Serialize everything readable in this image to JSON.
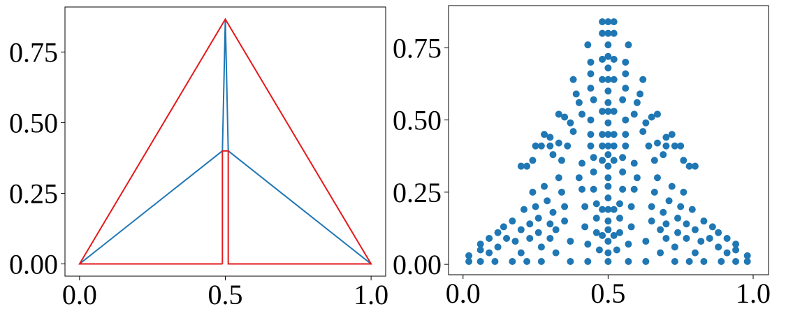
{
  "chart_data": [
    {
      "type": "line",
      "xlim": [
        -0.05,
        1.05
      ],
      "ylim": [
        -0.0433,
        0.9093
      ],
      "xticks": [
        {
          "value": 0,
          "label": "0.0"
        },
        {
          "value": 0.5,
          "label": "0.5"
        },
        {
          "value": 1,
          "label": "1.0"
        }
      ],
      "yticks": [
        {
          "value": 0,
          "label": "0.00"
        },
        {
          "value": 0.25,
          "label": "0.25"
        },
        {
          "value": 0.5,
          "label": "0.50"
        },
        {
          "value": 0.75,
          "label": "0.75"
        }
      ],
      "series": [
        {
          "color": "#1f77b4",
          "x": [
            0,
            0.49,
            0.5,
            0.51,
            1
          ],
          "values": [
            0,
            0.4,
            0.866,
            0.4,
            0
          ]
        },
        {
          "color": "#e41a1c",
          "x": [
            0.49,
            0,
            0.5,
            1,
            0.51,
            0.51,
            0.49,
            0.49
          ],
          "values": [
            0,
            0,
            0.866,
            0,
            0,
            0.4,
            0.4,
            0
          ]
        }
      ]
    },
    {
      "type": "scatter",
      "xlim": [
        -0.05,
        1.053
      ],
      "ylim": [
        -0.036,
        0.896
      ],
      "color": "#1f77b4",
      "xticks": [
        {
          "value": 0,
          "label": "0.0"
        },
        {
          "value": 0.5,
          "label": "0.5"
        },
        {
          "value": 1,
          "label": "1.0"
        }
      ],
      "yticks": [
        {
          "value": 0,
          "label": "0.00"
        },
        {
          "value": 0.25,
          "label": "0.25"
        },
        {
          "value": 0.5,
          "label": "0.50"
        },
        {
          "value": 0.75,
          "label": "0.75"
        }
      ],
      "x": [
        0.02,
        0.02,
        0.06,
        0.06,
        0.06,
        0.09,
        0.09,
        0.11,
        0.12,
        0.12,
        0.14,
        0.15,
        0.17,
        0.17,
        0.18,
        0.2,
        0.2,
        0.21,
        0.22,
        0.23,
        0.23,
        0.24,
        0.25,
        0.26,
        0.26,
        0.27,
        0.27,
        0.28,
        0.29,
        0.3,
        0.3,
        0.31,
        0.32,
        0.32,
        0.33,
        0.34,
        0.35,
        0.35,
        0.37,
        0.37,
        0.2,
        0.22,
        0.24,
        0.25,
        0.27,
        0.28,
        0.3,
        0.3,
        0.31,
        0.33,
        0.34,
        0.36,
        0.35,
        0.33,
        0.37,
        0.38,
        0.38,
        0.39,
        0.4,
        0.41,
        0.41,
        0.4,
        0.41,
        0.42,
        0.42,
        0.43,
        0.43,
        0.43,
        0.44,
        0.44,
        0.44,
        0.45,
        0.44,
        0.44,
        0.44,
        0.45,
        0.45,
        0.45,
        0.46,
        0.46,
        0.46,
        0.47,
        0.48,
        0.48,
        0.48,
        0.48,
        0.48,
        0.48,
        0.48,
        0.48,
        0.48,
        0.48,
        0.98,
        0.98,
        0.94,
        0.94,
        0.94,
        0.91,
        0.91,
        0.89,
        0.88,
        0.88,
        0.86,
        0.85,
        0.83,
        0.83,
        0.82,
        0.8,
        0.8,
        0.79,
        0.78,
        0.77,
        0.77,
        0.76,
        0.75,
        0.74,
        0.74,
        0.73,
        0.73,
        0.72,
        0.71,
        0.7,
        0.7,
        0.69,
        0.68,
        0.68,
        0.67,
        0.66,
        0.65,
        0.65,
        0.63,
        0.63,
        0.8,
        0.78,
        0.76,
        0.75,
        0.73,
        0.72,
        0.7,
        0.7,
        0.69,
        0.67,
        0.66,
        0.64,
        0.65,
        0.67,
        0.63,
        0.62,
        0.62,
        0.61,
        0.6,
        0.59,
        0.59,
        0.6,
        0.59,
        0.58,
        0.58,
        0.57,
        0.57,
        0.57,
        0.56,
        0.56,
        0.56,
        0.55,
        0.56,
        0.56,
        0.56,
        0.55,
        0.55,
        0.55,
        0.54,
        0.54,
        0.54,
        0.53,
        0.52,
        0.52,
        0.52,
        0.52,
        0.52,
        0.52,
        0.52,
        0.52,
        0.52,
        0.52,
        0.5,
        0.5,
        0.5,
        0.5,
        0.5,
        0.5,
        0.5,
        0.5,
        0.5,
        0.5,
        0.5,
        0.5,
        0.5,
        0.5,
        0.5,
        0.5,
        0.5,
        0.5,
        0.5,
        0.5,
        0.5,
        0.5,
        0.5
      ],
      "values": [
        0.01,
        0.03,
        0.01,
        0.05,
        0.07,
        0.04,
        0.09,
        0.01,
        0.06,
        0.11,
        0.13,
        0.09,
        0.01,
        0.15,
        0.08,
        0.04,
        0.12,
        0.19,
        0.01,
        0.14,
        0.09,
        0.25,
        0.2,
        0.16,
        0.11,
        0.06,
        0.01,
        0.27,
        0.22,
        0.14,
        0.09,
        0.18,
        0.04,
        0.12,
        0.3,
        0.25,
        0.2,
        0.15,
        0.08,
        0.01,
        0.34,
        0.34,
        0.36,
        0.41,
        0.41,
        0.45,
        0.41,
        0.44,
        0.38,
        0.42,
        0.36,
        0.41,
        0.51,
        0.52,
        0.49,
        0.46,
        0.64,
        0.59,
        0.56,
        0.52,
        0.35,
        0.3,
        0.26,
        0.2,
        0.13,
        0.07,
        0.01,
        0.76,
        0.7,
        0.66,
        0.61,
        0.57,
        0.5,
        0.45,
        0.41,
        0.37,
        0.32,
        0.26,
        0.21,
        0.16,
        0.11,
        0.05,
        0.84,
        0.8,
        0.71,
        0.64,
        0.53,
        0.45,
        0.41,
        0.36,
        0.19,
        0.1,
        0.01,
        0.03,
        0.01,
        0.05,
        0.07,
        0.04,
        0.09,
        0.01,
        0.06,
        0.11,
        0.13,
        0.09,
        0.01,
        0.15,
        0.08,
        0.04,
        0.12,
        0.19,
        0.01,
        0.14,
        0.09,
        0.25,
        0.2,
        0.16,
        0.11,
        0.06,
        0.01,
        0.27,
        0.22,
        0.14,
        0.09,
        0.18,
        0.04,
        0.12,
        0.3,
        0.25,
        0.2,
        0.15,
        0.08,
        0.01,
        0.34,
        0.34,
        0.36,
        0.41,
        0.41,
        0.45,
        0.41,
        0.44,
        0.38,
        0.42,
        0.36,
        0.41,
        0.51,
        0.52,
        0.49,
        0.46,
        0.64,
        0.59,
        0.56,
        0.52,
        0.35,
        0.3,
        0.26,
        0.2,
        0.13,
        0.07,
        0.01,
        0.76,
        0.7,
        0.66,
        0.61,
        0.57,
        0.5,
        0.45,
        0.41,
        0.37,
        0.32,
        0.26,
        0.21,
        0.16,
        0.11,
        0.05,
        0.84,
        0.8,
        0.71,
        0.64,
        0.53,
        0.45,
        0.41,
        0.36,
        0.19,
        0.1,
        0.01,
        0.04,
        0.08,
        0.12,
        0.15,
        0.19,
        0.23,
        0.27,
        0.3,
        0.34,
        0.38,
        0.41,
        0.45,
        0.49,
        0.53,
        0.56,
        0.6,
        0.64,
        0.68,
        0.72,
        0.76,
        0.8,
        0.84
      ]
    }
  ]
}
